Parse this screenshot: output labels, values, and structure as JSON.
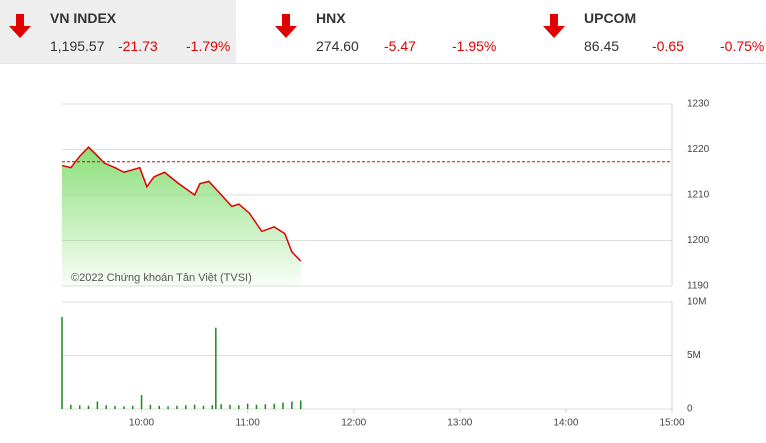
{
  "indices": [
    {
      "name": "VN INDEX",
      "value": "1,195.57",
      "change": "-21.73",
      "percent": "-1.79%"
    },
    {
      "name": "HNX",
      "value": "274.60",
      "change": "-5.47",
      "percent": "-1.95%"
    },
    {
      "name": "UPCOM",
      "value": "86.45",
      "change": "-0.65",
      "percent": "-0.75%"
    }
  ],
  "chart_data": [
    {
      "type": "line",
      "annotation": "©2022 Chứng khoán Tân Việt (TVSI)",
      "x": [
        555,
        560,
        565,
        570,
        574,
        579,
        585,
        590,
        599,
        603,
        607,
        613,
        621,
        630,
        633,
        638,
        644,
        651,
        655,
        661,
        668,
        675,
        681,
        685,
        690
      ],
      "series": [
        {
          "color": "#e00000",
          "values": [
            1216.5,
            1216,
            1218.5,
            1220.5,
            1219,
            1217,
            1216,
            1215,
            1216,
            1211.8,
            1214,
            1215,
            1212.5,
            1210,
            1212.5,
            1213,
            1210.5,
            1207.5,
            1208,
            1206,
            1202,
            1203,
            1201.5,
            1197.5,
            1195.5
          ]
        }
      ],
      "reference": 1217.3,
      "area_color": "#7ddc6a",
      "xlim": [
        555,
        900
      ],
      "ylim": [
        1190,
        1230
      ],
      "yticks": [
        1190,
        1200,
        1210,
        1220,
        1230
      ],
      "grid": true
    },
    {
      "type": "bar",
      "x": [
        555,
        560,
        565,
        570,
        575,
        580,
        585,
        590,
        595,
        600,
        605,
        610,
        615,
        620,
        625,
        630,
        635,
        640,
        642,
        645,
        650,
        655,
        660,
        665,
        670,
        675,
        680,
        685,
        690
      ],
      "values": [
        8600000,
        400000,
        350000,
        300000,
        700000,
        350000,
        300000,
        250000,
        300000,
        1300000,
        400000,
        300000,
        250000,
        300000,
        350000,
        400000,
        300000,
        350000,
        7600000,
        450000,
        400000,
        350000,
        500000,
        400000,
        450000,
        500000,
        600000,
        700000,
        800000
      ],
      "color": "#1a8a1a",
      "xlim": [
        555,
        900
      ],
      "ylim": [
        0,
        10000000
      ],
      "yticks": [
        0,
        {
          "value": 5000000,
          "label": "5M"
        },
        {
          "value": 10000000,
          "label": "10M"
        }
      ],
      "xticks": [
        {
          "value": 600,
          "label": "10:00"
        },
        {
          "value": 660,
          "label": "11:00"
        },
        {
          "value": 720,
          "label": "12:00"
        },
        {
          "value": 780,
          "label": "13:00"
        },
        {
          "value": 840,
          "label": "14:00"
        },
        {
          "value": 900,
          "label": "15:00"
        }
      ],
      "grid": true
    }
  ]
}
